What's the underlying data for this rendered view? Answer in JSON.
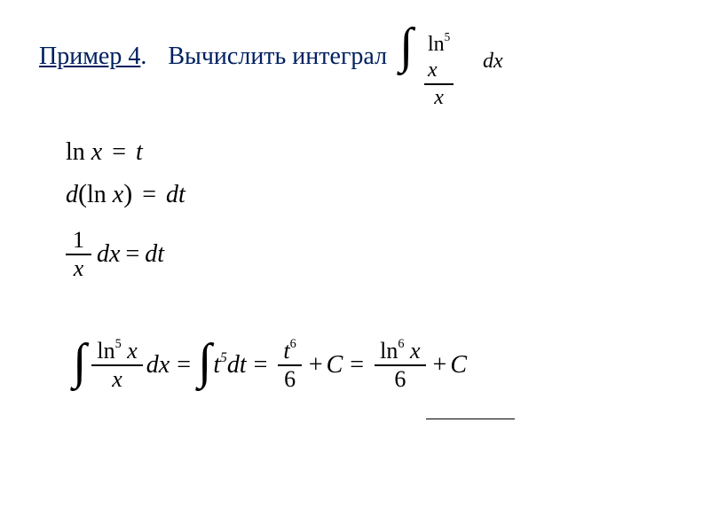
{
  "header": {
    "example_label": "Пример 4",
    "period": ".",
    "action_text": "Вычислить интеграл",
    "integral": {
      "numerator_ln": "ln",
      "numerator_exp": "5",
      "numerator_var": "x",
      "denominator": "x",
      "dx": "dx"
    }
  },
  "substitution": {
    "line1": {
      "lhs_ln": "ln",
      "lhs_var": "x",
      "eq": "=",
      "rhs": "t"
    },
    "line2": {
      "d": "d",
      "lparen": "(",
      "ln": "ln",
      "var": "x",
      "rparen": ")",
      "eq": "=",
      "rhs": "dt"
    },
    "line3": {
      "num": "1",
      "den": "x",
      "dx": "dx",
      "eq": "=",
      "rhs": "dt"
    }
  },
  "result": {
    "frac1": {
      "num_ln": "ln",
      "num_exp": "5",
      "num_var": "x",
      "den": "x"
    },
    "dx1": "dx",
    "eq1": "=",
    "t_term": "t",
    "t_exp": "5",
    "dt": "dt",
    "eq2": "=",
    "frac2": {
      "num_var": "t",
      "num_exp": "6",
      "den": "6"
    },
    "plus_c1": "+",
    "c1": "C",
    "eq3": "=",
    "frac3": {
      "num_ln": "ln",
      "num_exp": "6",
      "num_var": "x",
      "den": "6"
    },
    "plus_c2": "+",
    "c2": "C"
  },
  "colors": {
    "title": "#002060",
    "text": "#000000",
    "background": "#ffffff"
  },
  "fonts": {
    "family": "Times New Roman",
    "title_size": 28,
    "math_size": 28
  }
}
